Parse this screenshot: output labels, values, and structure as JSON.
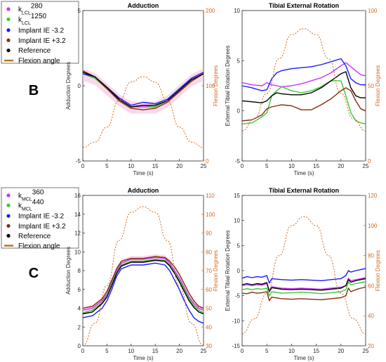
{
  "colors": {
    "magenta": "#cc33ff",
    "green": "#33cc33",
    "blue": "#1a1aff",
    "brown": "#8b2a10",
    "black": "#000000",
    "orange": "#d2691e",
    "pink_band": "#f4b8d8"
  },
  "panel_labels": {
    "B": "B",
    "C": "C"
  },
  "legends": {
    "B": [
      {
        "k": "k",
        "sub": "LCL",
        "val": "280",
        "color": "#cc33ff",
        "type": "dot"
      },
      {
        "k": "k",
        "sub": "LCL",
        "val": "1250",
        "color": "#33cc33",
        "type": "dot"
      },
      {
        "text": "Implant IE -3.2",
        "color": "#1a1aff",
        "type": "dot"
      },
      {
        "text": "Implant IE +3.2",
        "color": "#8b2a10",
        "type": "dot"
      },
      {
        "text": "Reference",
        "color": "#000000",
        "type": "dot"
      },
      {
        "text": "Flexion angle",
        "color": "#b8761f",
        "type": "line"
      }
    ],
    "C": [
      {
        "k": "k",
        "sub": "MCL",
        "val": "360",
        "color": "#cc33ff",
        "type": "dot"
      },
      {
        "k": "k",
        "sub": "MCL",
        "val": "440",
        "color": "#33cc33",
        "type": "dot"
      },
      {
        "text": "Implant IE -3.2",
        "color": "#1a1aff",
        "type": "dot"
      },
      {
        "text": "Implant IE +3.2",
        "color": "#8b2a10",
        "type": "dot"
      },
      {
        "text": "Reference",
        "color": "#000000",
        "type": "dot"
      },
      {
        "text": "Flexion angle",
        "color": "#b8761f",
        "type": "line"
      }
    ]
  },
  "chart_data": [
    {
      "id": "B-adduction",
      "type": "line",
      "title": "Adduction",
      "xlabel": "Time (s)",
      "ylabel": "Adduction Degrees",
      "y2label": "Flexion Degrees",
      "xlim": [
        0,
        25
      ],
      "ylim": [
        -5,
        5
      ],
      "y2lim": [
        0,
        200
      ],
      "xticks": [
        0,
        5,
        10,
        15,
        20,
        25
      ],
      "yticks": [
        -5,
        0,
        5
      ],
      "y2ticks": [
        0,
        100,
        200
      ],
      "x": [
        0,
        2.5,
        5,
        7.5,
        10,
        12.5,
        15,
        17.5,
        20,
        22.5,
        25
      ],
      "series": [
        {
          "color": "#cc33ff",
          "values": [
            0.8,
            0.5,
            -0.2,
            -0.9,
            -1.4,
            -1.4,
            -1.4,
            -1.0,
            -0.3,
            0.4,
            0.8
          ]
        },
        {
          "color": "#33cc33",
          "values": [
            0.8,
            0.5,
            -0.2,
            -0.9,
            -1.4,
            -1.3,
            -1.4,
            -1.0,
            -0.3,
            0.4,
            0.8
          ]
        },
        {
          "color": "#1a1aff",
          "values": [
            0.8,
            0.6,
            -0.1,
            -0.8,
            -1.3,
            -1.1,
            -1.2,
            -0.9,
            -0.2,
            0.5,
            0.9
          ]
        },
        {
          "color": "#8b2a10",
          "values": [
            1.0,
            0.6,
            -0.2,
            -1.0,
            -1.5,
            -1.6,
            -1.5,
            -1.1,
            -0.4,
            0.3,
            0.8
          ]
        },
        {
          "color": "#000000",
          "values": [
            0.9,
            0.6,
            -0.1,
            -0.9,
            -1.4,
            -1.3,
            -1.3,
            -1.0,
            -0.3,
            0.4,
            0.8
          ]
        }
      ],
      "flexion": {
        "x": [
          0,
          2.5,
          5,
          7.5,
          10,
          12.5,
          15,
          17.5,
          20,
          22.5,
          25
        ],
        "values": [
          18,
          25,
          45,
          80,
          105,
          112,
          105,
          80,
          45,
          25,
          18
        ]
      }
    },
    {
      "id": "B-tibial",
      "type": "line",
      "title": "Tibial External Rotation",
      "xlabel": "Time (s)",
      "ylabel": "External Tibial Rotation Degrees",
      "y2label": "Flexion Degrees",
      "xlim": [
        0,
        25
      ],
      "ylim": [
        -5,
        10
      ],
      "y2lim": [
        0,
        100
      ],
      "xticks": [
        0,
        5,
        10,
        15,
        20,
        25
      ],
      "yticks": [
        -5,
        0,
        5,
        10
      ],
      "y2ticks": [
        0,
        50,
        100
      ],
      "x": [
        0,
        2,
        4,
        5,
        6,
        7,
        8,
        10,
        12,
        14,
        16,
        18,
        20,
        21,
        22,
        23,
        24,
        25
      ],
      "series": [
        {
          "color": "#cc33ff",
          "values": [
            2.8,
            2.6,
            2.5,
            2.8,
            2.6,
            2.5,
            2.4,
            2.5,
            2.7,
            3.0,
            3.3,
            3.8,
            4.5,
            4.8,
            4.4,
            4.0,
            3.6,
            3.5
          ]
        },
        {
          "color": "#33cc33",
          "values": [
            -1.3,
            -1.2,
            -0.6,
            -0.2,
            1.5,
            2.0,
            2.4,
            2.0,
            1.8,
            2.0,
            2.4,
            3.0,
            3.0,
            1.5,
            -0.2,
            -1.0,
            -1.2,
            -1.3
          ]
        },
        {
          "color": "#1a1aff",
          "values": [
            2.5,
            2.3,
            2.0,
            2.1,
            3.2,
            3.8,
            4.0,
            4.2,
            4.3,
            4.4,
            4.6,
            4.9,
            5.2,
            4.5,
            3.2,
            2.8,
            2.6,
            2.6
          ]
        },
        {
          "color": "#8b2a10",
          "values": [
            -1.0,
            -0.9,
            -0.4,
            0.2,
            0.4,
            0.5,
            0.6,
            0.5,
            0.1,
            0.1,
            0.6,
            1.2,
            2.0,
            2.3,
            2.0,
            1.0,
            0.2,
            0.0
          ]
        },
        {
          "color": "#000000",
          "values": [
            1.0,
            0.9,
            0.8,
            1.0,
            1.5,
            1.8,
            1.7,
            1.6,
            1.6,
            1.8,
            2.3,
            3.0,
            3.7,
            3.9,
            2.3,
            1.5,
            1.3,
            1.3
          ]
        }
      ],
      "flexion": {
        "x": [
          0,
          2.5,
          5,
          7.5,
          10,
          12.5,
          15,
          17.5,
          20,
          22.5,
          25
        ],
        "values": [
          20,
          28,
          45,
          68,
          84,
          88,
          84,
          68,
          45,
          28,
          20
        ]
      }
    },
    {
      "id": "C-adduction",
      "type": "line",
      "title": "Adduction",
      "xlabel": "Time (s)",
      "ylabel": "Adduction Degrees",
      "y2label": "Flexion Degrees",
      "xlim": [
        0,
        25
      ],
      "ylim": [
        0,
        16
      ],
      "y2lim": [
        30,
        110
      ],
      "xticks": [
        0,
        5,
        10,
        15,
        20,
        25
      ],
      "yticks": [
        0,
        2,
        4,
        6,
        8,
        10,
        12,
        14,
        16
      ],
      "y2ticks": [
        30,
        40,
        50,
        60,
        70,
        80,
        90,
        100,
        110
      ],
      "x": [
        0,
        2,
        4,
        5,
        6,
        7,
        8,
        10,
        12.5,
        15,
        17,
        18,
        19,
        20,
        21,
        22,
        23,
        24,
        25
      ],
      "series": [
        {
          "color": "#cc33ff",
          "values": [
            3.8,
            4.0,
            4.8,
            5.5,
            6.8,
            8.0,
            8.8,
            9.2,
            9.2,
            9.4,
            9.3,
            8.8,
            8.0,
            7.2,
            6.2,
            5.2,
            4.5,
            4.0,
            3.8
          ]
        },
        {
          "color": "#33cc33",
          "values": [
            3.5,
            3.8,
            4.6,
            5.3,
            6.6,
            7.8,
            8.6,
            9.0,
            9.0,
            9.2,
            9.1,
            8.6,
            7.8,
            7.0,
            6.0,
            5.0,
            4.3,
            3.8,
            3.5
          ]
        },
        {
          "color": "#1a1aff",
          "values": [
            3.0,
            3.2,
            4.0,
            4.8,
            6.0,
            7.4,
            8.2,
            8.6,
            8.6,
            8.8,
            8.6,
            8.0,
            7.0,
            6.0,
            4.8,
            3.8,
            3.0,
            2.6,
            2.4
          ]
        },
        {
          "color": "#8b2a10",
          "values": [
            4.0,
            4.2,
            5.0,
            5.8,
            7.0,
            8.2,
            9.0,
            9.3,
            9.3,
            9.5,
            9.4,
            9.0,
            8.4,
            7.6,
            6.6,
            5.6,
            4.8,
            4.2,
            4.0
          ]
        },
        {
          "color": "#000000",
          "values": [
            3.4,
            3.6,
            4.5,
            5.2,
            6.4,
            7.7,
            8.5,
            8.9,
            8.9,
            9.1,
            9.0,
            8.5,
            7.7,
            6.8,
            5.8,
            4.8,
            4.1,
            3.6,
            3.4
          ]
        }
      ],
      "flexion": {
        "x": [
          0,
          2.5,
          5,
          7.5,
          10,
          12.5,
          15,
          17.5,
          20,
          22.5,
          25
        ],
        "values": [
          30,
          42,
          62,
          86,
          101,
          104,
          101,
          86,
          62,
          42,
          30
        ]
      }
    },
    {
      "id": "C-tibial",
      "type": "line",
      "title": "Tibial External Rotation",
      "xlabel": "Time (s)",
      "ylabel": "External Tibial Rotation Degrees",
      "y2label": "Flexion Degrees",
      "xlim": [
        0,
        25
      ],
      "ylim": [
        -15,
        15
      ],
      "y2lim": [
        20,
        120
      ],
      "xticks": [
        0,
        5,
        10,
        15,
        20,
        25
      ],
      "yticks": [
        -15,
        -10,
        -5,
        0,
        5,
        10,
        15
      ],
      "y2ticks": [
        20,
        40,
        60,
        80,
        100,
        120
      ],
      "x": [
        0,
        1,
        2,
        3,
        4,
        5,
        5.5,
        6,
        8,
        10,
        12,
        14,
        16,
        18,
        20,
        21,
        21.5,
        22,
        23,
        24,
        25
      ],
      "series": [
        {
          "color": "#cc33ff",
          "values": [
            -3.0,
            -2.8,
            -3.0,
            -2.8,
            -2.9,
            -2.6,
            -4.0,
            -3.2,
            -3.5,
            -3.6,
            -3.5,
            -3.6,
            -3.7,
            -3.5,
            -3.3,
            -3.0,
            -1.5,
            -2.0,
            -1.8,
            -1.6,
            -1.4
          ]
        },
        {
          "color": "#33cc33",
          "values": [
            -3.8,
            -3.6,
            -3.8,
            -3.6,
            -3.7,
            -3.5,
            -5.0,
            -4.2,
            -4.5,
            -4.4,
            -4.3,
            -4.4,
            -4.6,
            -4.4,
            -4.2,
            -3.8,
            -2.3,
            -2.8,
            -2.6,
            -2.4,
            -2.2
          ]
        },
        {
          "color": "#1a1aff",
          "values": [
            -1.5,
            -1.2,
            -1.4,
            -1.2,
            -1.3,
            -1.0,
            -2.5,
            -1.6,
            -1.8,
            -1.9,
            -1.8,
            -1.9,
            -2.0,
            -1.8,
            -1.6,
            -1.0,
            0.0,
            -0.3,
            0.0,
            0.2,
            0.4
          ]
        },
        {
          "color": "#8b2a10",
          "values": [
            -4.5,
            -4.6,
            -4.3,
            -4.5,
            -4.4,
            -4.2,
            -6.0,
            -5.3,
            -5.6,
            -5.7,
            -5.6,
            -5.7,
            -5.8,
            -5.6,
            -5.4,
            -5.0,
            -3.5,
            -4.2,
            -3.8,
            -3.5,
            -3.3
          ]
        },
        {
          "color": "#000000",
          "values": [
            -2.8,
            -2.6,
            -2.8,
            -2.6,
            -2.7,
            -2.4,
            -4.2,
            -3.4,
            -3.7,
            -3.8,
            -3.7,
            -3.8,
            -3.9,
            -3.7,
            -3.5,
            -3.0,
            -1.8,
            -2.3,
            -2.0,
            -1.8,
            -1.6
          ]
        }
      ],
      "flexion": {
        "x": [
          0,
          2.5,
          5,
          7.5,
          10,
          12.5,
          15,
          17.5,
          20,
          22.5,
          25
        ],
        "values": [
          28,
          38,
          55,
          80,
          100,
          106,
          100,
          80,
          55,
          38,
          28
        ]
      }
    }
  ]
}
